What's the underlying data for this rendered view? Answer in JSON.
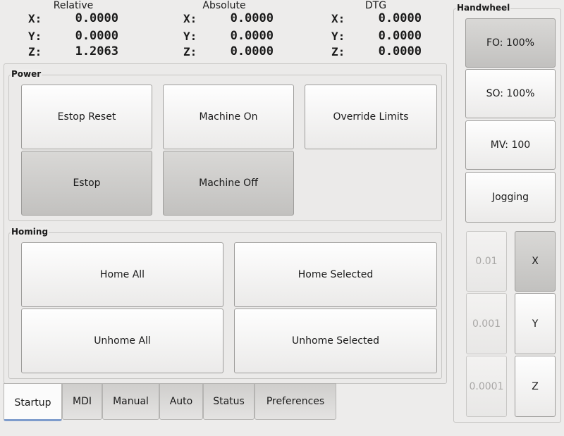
{
  "dro": {
    "relative": {
      "title": "Relative",
      "rows": [
        {
          "axis": "X:",
          "value": "0.0000"
        },
        {
          "axis": "Y:",
          "value": "0.0000"
        },
        {
          "axis": "Z:",
          "value": "1.2063"
        }
      ]
    },
    "absolute": {
      "title": "Absolute",
      "rows": [
        {
          "axis": "X:",
          "value": "0.0000"
        },
        {
          "axis": "Y:",
          "value": "0.0000"
        },
        {
          "axis": "Z:",
          "value": "0.0000"
        }
      ]
    },
    "dtg": {
      "title": "DTG",
      "rows": [
        {
          "axis": "X:",
          "value": "0.0000"
        },
        {
          "axis": "Y:",
          "value": "0.0000"
        },
        {
          "axis": "Z:",
          "value": "0.0000"
        }
      ]
    }
  },
  "power": {
    "title": "Power",
    "estop_reset": "Estop Reset",
    "machine_on": "Machine On",
    "override_limits": "Override Limits",
    "estop": "Estop",
    "machine_off": "Machine Off"
  },
  "homing": {
    "title": "Homing",
    "home_all": "Home All",
    "home_selected": "Home Selected",
    "unhome_all": "Unhome All",
    "unhome_selected": "Unhome Selected"
  },
  "tabs": [
    "Startup",
    "MDI",
    "Manual",
    "Auto",
    "Status",
    "Preferences"
  ],
  "active_tab": "Startup",
  "handwheel": {
    "title": "Handwheel",
    "fo": "FO: 100%",
    "so": "SO: 100%",
    "mv": "MV: 100",
    "jogging": "Jogging",
    "increments": [
      "0.01",
      "0.001",
      "0.0001"
    ],
    "axes": [
      "X",
      "Y",
      "Z"
    ],
    "selected_axis": "X",
    "selected_mode": "FO: 100%"
  }
}
